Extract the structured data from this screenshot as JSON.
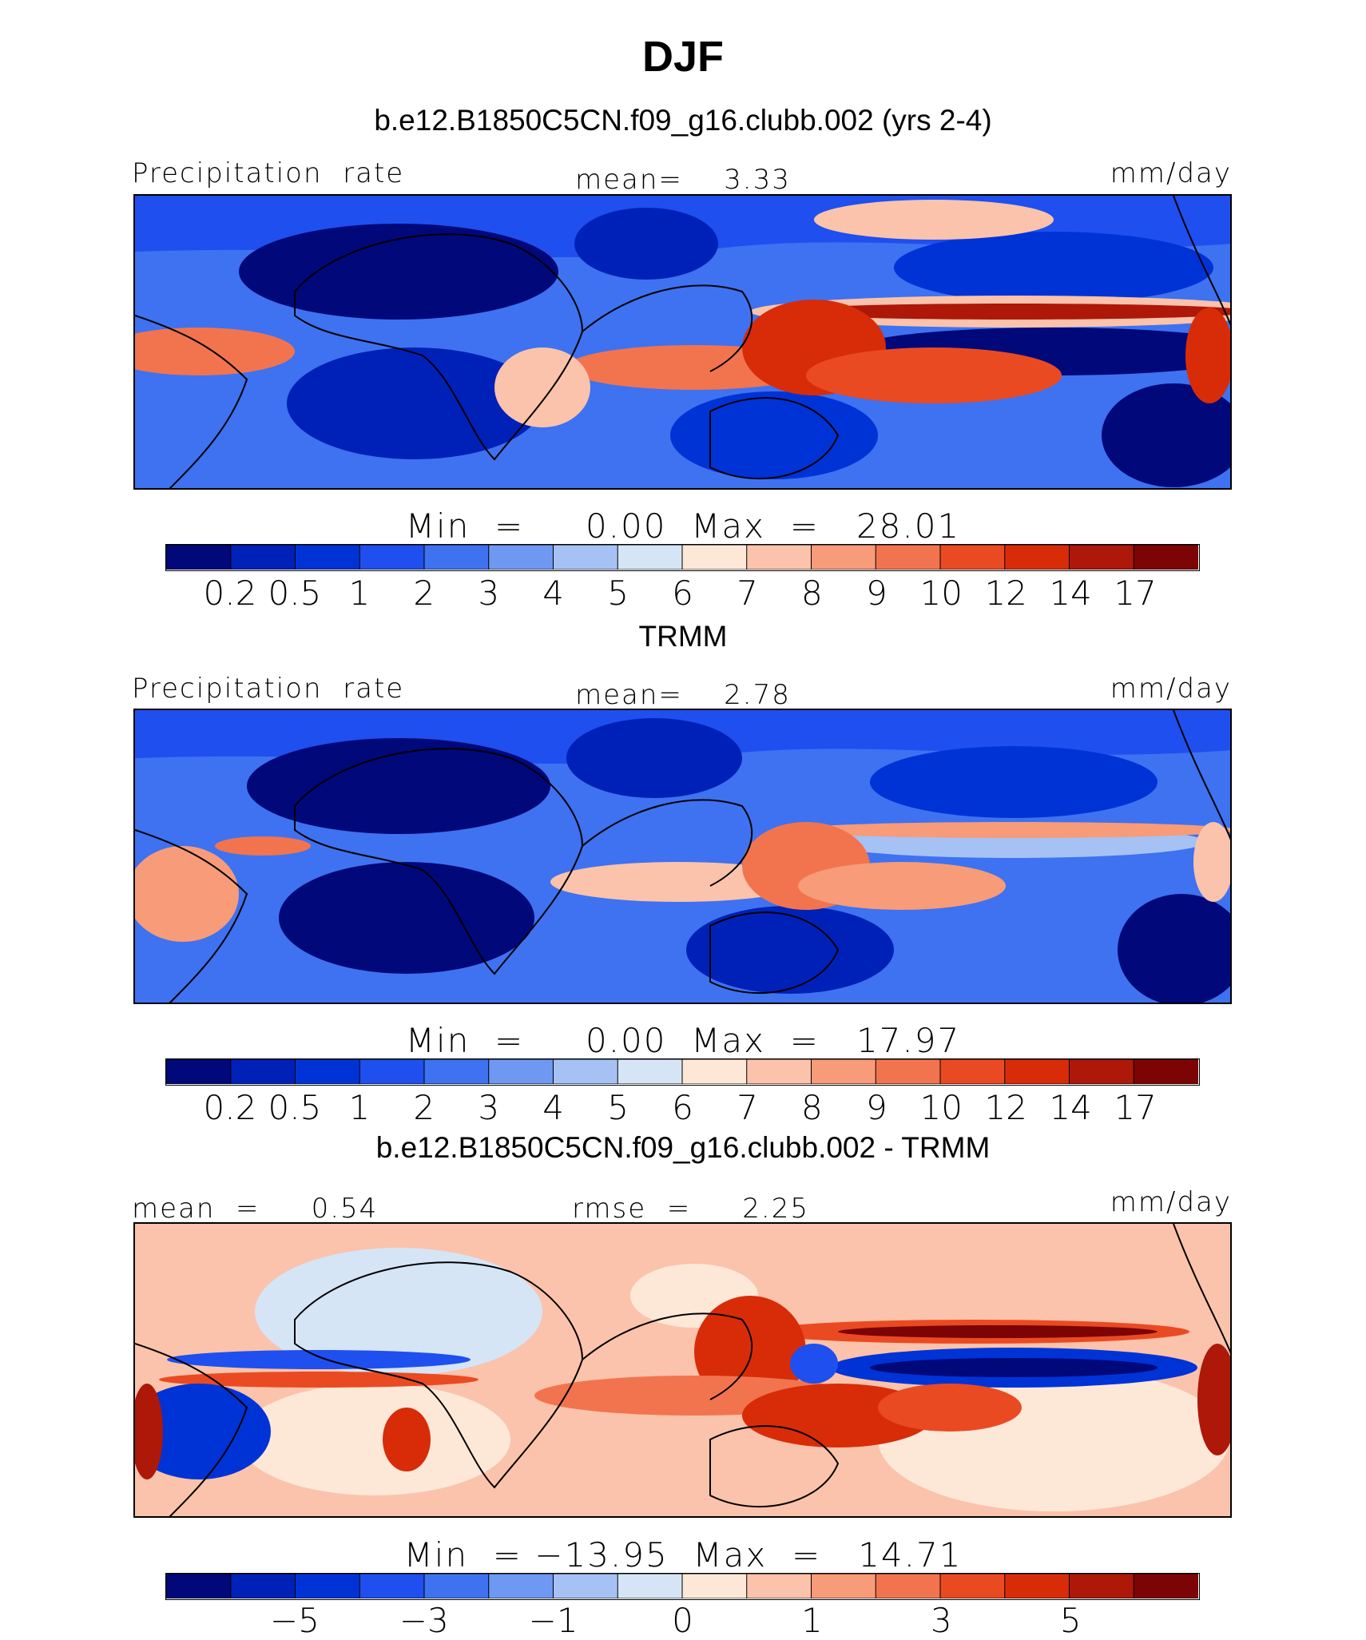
{
  "title": "DJF",
  "colors": {
    "scale": [
      "#00087a",
      "#0021b8",
      "#0033d6",
      "#1f4fee",
      "#3e72f0",
      "#6e98f2",
      "#a6c1f4",
      "#d5e5f6",
      "#fde8d8",
      "#fbc3ab",
      "#f79b78",
      "#f2744e",
      "#ea4a22",
      "#d82c08",
      "#ad1808",
      "#7d0404"
    ],
    "land_outline": "#000000"
  },
  "panels": [
    {
      "id": "model",
      "subtitle": "b.e12.B1850C5CN.f09_g16.clubb.002 (yrs 2-4)",
      "left_label": "Precipitation  rate",
      "center_label": "mean=    3.33",
      "right_label": "mm/day",
      "minmax": "Min  =     0.00  Max  =   28.01",
      "colorbar_ticks": [
        "0.2",
        "0.5",
        "1",
        "2",
        "3",
        "4",
        "5",
        "6",
        "7",
        "8",
        "9",
        "10",
        "12",
        "14",
        "17"
      ]
    },
    {
      "id": "obs",
      "subtitle": "TRMM",
      "left_label": "Precipitation  rate",
      "center_label": "mean=    2.78",
      "right_label": "mm/day",
      "minmax": "Min  =     0.00  Max  =   17.97",
      "colorbar_ticks": [
        "0.2",
        "0.5",
        "1",
        "2",
        "3",
        "4",
        "5",
        "6",
        "7",
        "8",
        "9",
        "10",
        "12",
        "14",
        "17"
      ]
    },
    {
      "id": "diff",
      "subtitle": "b.e12.B1850C5CN.f09_g16.clubb.002 - TRMM",
      "left_label": "mean  =     0.54",
      "center_label": "rmse  =     2.25",
      "right_label": "mm/day",
      "minmax": "Min  = −13.95  Max  =   14.71",
      "colorbar_ticks": [
        "−5",
        "−3",
        "−1",
        "0",
        "1",
        "3",
        "5"
      ]
    }
  ],
  "chart_data": [
    {
      "type": "heatmap",
      "title": "b.e12.B1850C5CN.f09_g16.clubb.002 (yrs 2-4)",
      "variable": "Precipitation  rate",
      "units": "mm/day",
      "mean": 3.33,
      "min": 0.0,
      "max": 28.01,
      "levels": [
        0.2,
        0.5,
        1,
        2,
        3,
        4,
        5,
        6,
        7,
        8,
        9,
        10,
        12,
        14,
        17
      ]
    },
    {
      "type": "heatmap",
      "title": "TRMM",
      "variable": "Precipitation  rate",
      "units": "mm/day",
      "mean": 2.78,
      "min": 0.0,
      "max": 17.97,
      "levels": [
        0.2,
        0.5,
        1,
        2,
        3,
        4,
        5,
        6,
        7,
        8,
        9,
        10,
        12,
        14,
        17
      ]
    },
    {
      "type": "heatmap",
      "title": "b.e12.B1850C5CN.f09_g16.clubb.002 - TRMM",
      "units": "mm/day",
      "mean": 0.54,
      "rmse": 2.25,
      "min": -13.95,
      "max": 14.71,
      "levels": [
        -5,
        -3,
        -1,
        0,
        1,
        3,
        5
      ]
    }
  ]
}
